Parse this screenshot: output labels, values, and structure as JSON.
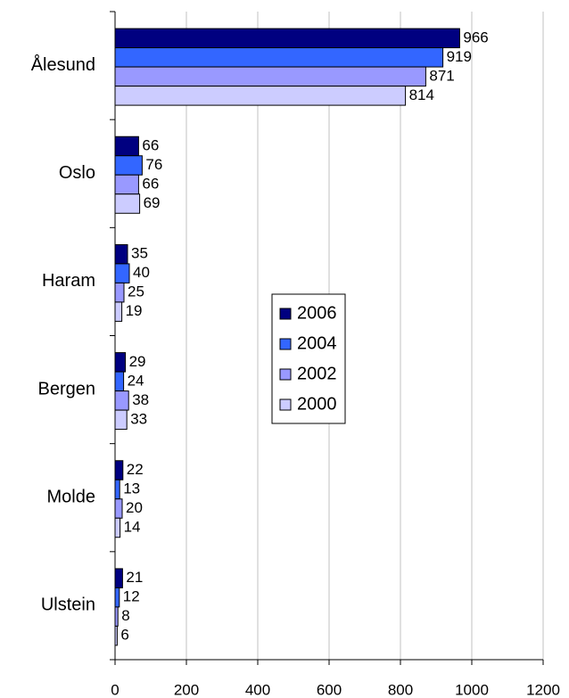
{
  "chart_data": {
    "type": "bar",
    "orientation": "horizontal",
    "categories": [
      "Ålesund",
      "Oslo",
      "Haram",
      "Bergen",
      "Molde",
      "Ulstein"
    ],
    "series": [
      {
        "name": "2006",
        "color": "#000080",
        "values": [
          966,
          66,
          35,
          29,
          22,
          21
        ]
      },
      {
        "name": "2004",
        "color": "#3366ff",
        "values": [
          919,
          76,
          40,
          24,
          13,
          12
        ]
      },
      {
        "name": "2002",
        "color": "#9999ff",
        "values": [
          871,
          66,
          25,
          38,
          20,
          8
        ]
      },
      {
        "name": "2000",
        "color": "#ccccff",
        "values": [
          814,
          69,
          19,
          33,
          14,
          6
        ]
      }
    ],
    "xlim": [
      0,
      1200
    ],
    "xticks": [
      0,
      200,
      400,
      600,
      800,
      1000,
      1200
    ],
    "grid": true,
    "legend": "center"
  }
}
